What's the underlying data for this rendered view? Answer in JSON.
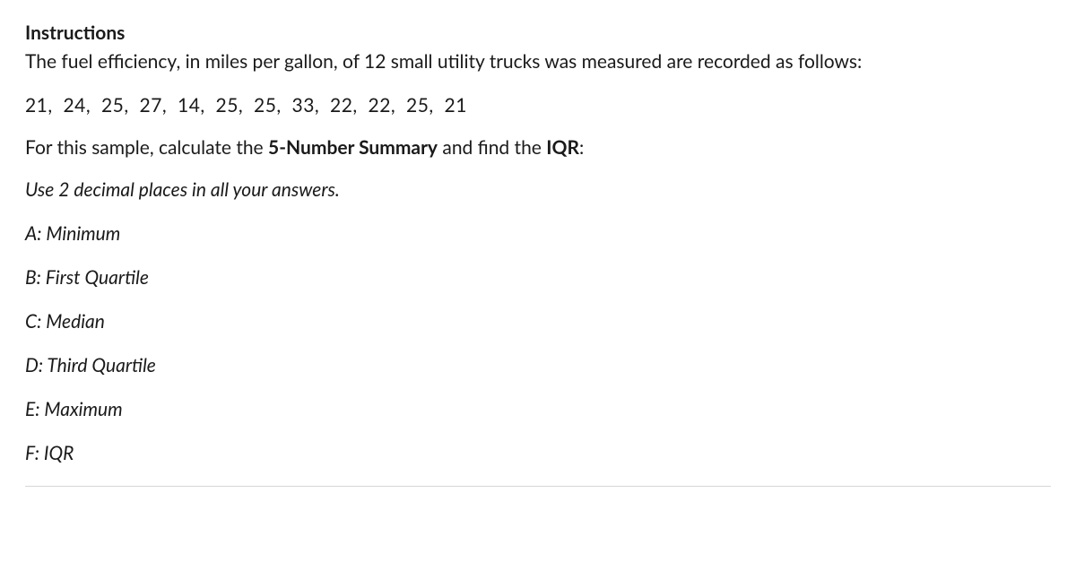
{
  "instructions": {
    "heading": "Instructions",
    "intro": "The fuel efficiency, in miles per gallon, of 12 small utility trucks was measured are recorded as follows:",
    "data_values": "21,  24,  25,  27,  14,  25,  25,  33,  22,  22,  25,  21",
    "prompt_pre": "For this sample, calculate the ",
    "prompt_bold1": "5-Number Summary",
    "prompt_mid": " and find the ",
    "prompt_bold2": "IQR",
    "prompt_post": ":",
    "note": "Use 2 decimal places in all your answers."
  },
  "answers": {
    "a": "A: Minimum",
    "b": "B: First Quartile",
    "c": "C: Median",
    "d": "D: Third Quartile",
    "e": "E: Maximum",
    "f": "F: IQR"
  }
}
